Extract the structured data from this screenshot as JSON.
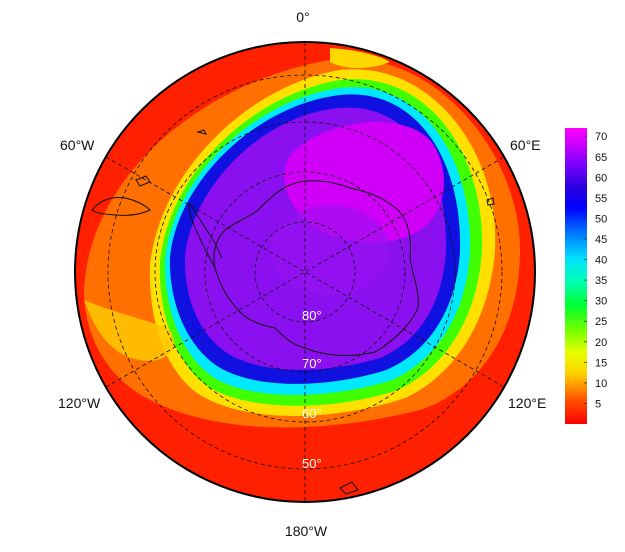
{
  "map": {
    "projection": "south-polar-stereographic",
    "lon_labels": {
      "top": "0°",
      "upper_right": "60°E",
      "lower_right": "120°E",
      "bottom": "180°W",
      "lower_left": "120°W",
      "upper_left": "60°W"
    },
    "lat_labels": [
      "80°",
      "70°",
      "60°",
      "50°"
    ]
  },
  "colorbar": {
    "ticks": [
      "70",
      "65",
      "60",
      "55",
      "50",
      "45",
      "40",
      "35",
      "30",
      "25",
      "20",
      "15",
      "10",
      "5"
    ],
    "range": [
      0,
      72
    ],
    "colors": [
      "#ff0000",
      "#ff6000",
      "#ffd000",
      "#e8ff00",
      "#80ff00",
      "#00ff40",
      "#00ffc0",
      "#00d8ff",
      "#0060ff",
      "#0000ff",
      "#2000e0",
      "#7000ff",
      "#b000ff",
      "#ff00ff"
    ]
  },
  "field_colors": {
    "outer": "#ff2000",
    "orange": "#ff7000",
    "yellow": "#ffe000",
    "green": "#40ff00",
    "cyan": "#00e8ff",
    "blue": "#1010e0",
    "purple": "#8a10f0",
    "magenta": "#d000f8",
    "land_outline": "#111111"
  }
}
